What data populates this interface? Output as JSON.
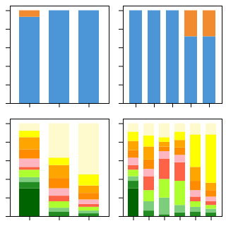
{
  "chart_data": [
    {
      "type": "bar",
      "stacked": true,
      "tick_labels": false,
      "categories": [
        null,
        null,
        null
      ],
      "series": [
        {
          "color": "#4C96D7",
          "values": [
            0.93,
            1.0,
            1.0
          ]
        },
        {
          "color": "#F28B30",
          "values": [
            0.07,
            0.0,
            0.0
          ]
        }
      ],
      "ylim": [
        0,
        1.05
      ],
      "yticks": [
        0,
        0.2,
        0.4,
        0.6,
        0.8,
        1.0
      ]
    },
    {
      "type": "bar",
      "stacked": true,
      "tick_labels": false,
      "categories": [
        null,
        null,
        null,
        null,
        null
      ],
      "series": [
        {
          "color": "#4C96D7",
          "values": [
            1.0,
            1.0,
            1.0,
            0.72,
            0.72
          ]
        },
        {
          "color": "#F28B30",
          "values": [
            0.0,
            0.0,
            0.0,
            0.28,
            0.28
          ]
        }
      ],
      "ylim": [
        0,
        1.05
      ],
      "yticks": [
        0,
        0.2,
        0.4,
        0.6,
        0.8,
        1.0
      ]
    },
    {
      "type": "bar",
      "stacked": true,
      "tick_labels": false,
      "categories": [
        null,
        null,
        null
      ],
      "series": [
        {
          "color": "#006400",
          "values": [
            0.3,
            0.0,
            0.0
          ]
        },
        {
          "color": "#228B22",
          "values": [
            0.07,
            0.05,
            0.03
          ]
        },
        {
          "color": "#7CCD7C",
          "values": [
            0.05,
            0.04,
            0.03
          ]
        },
        {
          "color": "#ADFF2F",
          "values": [
            0.08,
            0.07,
            0.04
          ]
        },
        {
          "color": "#FF6347",
          "values": [
            0.03,
            0.06,
            0.03
          ]
        },
        {
          "color": "#FFB6C1",
          "values": [
            0.09,
            0.08,
            0.05
          ]
        },
        {
          "color": "#FF8C00",
          "values": [
            0.1,
            0.11,
            0.07
          ]
        },
        {
          "color": "#FFA500",
          "values": [
            0.13,
            0.14,
            0.08
          ]
        },
        {
          "color": "#FFFF00",
          "values": [
            0.07,
            0.08,
            0.12
          ]
        },
        {
          "color": "#FFFACD",
          "values": [
            0.08,
            0.37,
            0.55
          ]
        }
      ],
      "ylim": [
        0,
        1.05
      ],
      "yticks": [
        0,
        0.2,
        0.4,
        0.6,
        0.8,
        1.0
      ]
    },
    {
      "type": "bar",
      "stacked": true,
      "tick_labels": false,
      "categories": [
        null,
        null,
        null,
        null,
        null,
        null
      ],
      "series": [
        {
          "color": "#006400",
          "values": [
            0.3,
            0.0,
            0.0,
            0.0,
            0.0,
            0.0
          ]
        },
        {
          "color": "#228B22",
          "values": [
            0.08,
            0.06,
            0.02,
            0.04,
            0.05,
            0.04
          ]
        },
        {
          "color": "#7CCD7C",
          "values": [
            0.05,
            0.1,
            0.18,
            0.08,
            0.05,
            0.04
          ]
        },
        {
          "color": "#ADFF2F",
          "values": [
            0.07,
            0.12,
            0.2,
            0.26,
            0.06,
            0.04
          ]
        },
        {
          "color": "#FF6347",
          "values": [
            0.05,
            0.15,
            0.22,
            0.2,
            0.05,
            0.04
          ]
        },
        {
          "color": "#FFB6C1",
          "values": [
            0.08,
            0.08,
            0.08,
            0.08,
            0.07,
            0.05
          ]
        },
        {
          "color": "#FF8C00",
          "values": [
            0.08,
            0.1,
            0.05,
            0.08,
            0.1,
            0.07
          ]
        },
        {
          "color": "#FFA500",
          "values": [
            0.1,
            0.14,
            0.05,
            0.08,
            0.15,
            0.08
          ]
        },
        {
          "color": "#FFFF00",
          "values": [
            0.1,
            0.12,
            0.05,
            0.09,
            0.35,
            0.52
          ]
        },
        {
          "color": "#FFFACD",
          "values": [
            0.09,
            0.13,
            0.15,
            0.09,
            0.12,
            0.12
          ]
        }
      ],
      "ylim": [
        0,
        1.05
      ],
      "yticks": [
        0,
        0.2,
        0.4,
        0.6,
        0.8,
        1.0
      ]
    }
  ]
}
